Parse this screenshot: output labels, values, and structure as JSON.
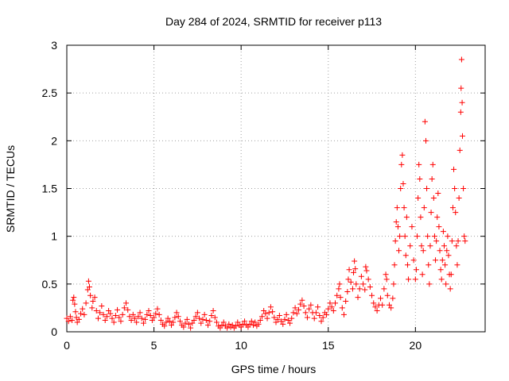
{
  "chart_data": {
    "type": "scatter",
    "title": "Day 284 of 2024, SRMTID for receiver p113",
    "xlabel": "GPS time / hours",
    "ylabel": "SRMTID / TECUs",
    "xlim": [
      0,
      24
    ],
    "ylim": [
      0,
      3
    ],
    "xticks": [
      0,
      5,
      10,
      15,
      20
    ],
    "yticks": [
      0,
      0.5,
      1,
      1.5,
      2,
      2.5,
      3
    ],
    "xtick_labels": [
      "0",
      "5",
      "10",
      "15",
      "20"
    ],
    "ytick_labels": [
      "0",
      "0.5",
      "1",
      "1.5",
      "2",
      "2.5",
      "3"
    ],
    "grid": true,
    "marker": "+",
    "series": [
      {
        "name": "SRMTID",
        "color": "#ff0000",
        "points": [
          [
            0.0,
            0.14
          ],
          [
            0.1,
            0.11
          ],
          [
            0.2,
            0.16
          ],
          [
            0.3,
            0.12
          ],
          [
            0.35,
            0.33
          ],
          [
            0.4,
            0.36
          ],
          [
            0.45,
            0.29
          ],
          [
            0.5,
            0.21
          ],
          [
            0.55,
            0.15
          ],
          [
            0.6,
            0.1
          ],
          [
            0.7,
            0.13
          ],
          [
            0.8,
            0.19
          ],
          [
            0.9,
            0.24
          ],
          [
            1.0,
            0.18
          ],
          [
            1.1,
            0.3
          ],
          [
            1.2,
            0.44
          ],
          [
            1.25,
            0.53
          ],
          [
            1.3,
            0.47
          ],
          [
            1.35,
            0.38
          ],
          [
            1.45,
            0.25
          ],
          [
            1.5,
            0.32
          ],
          [
            1.6,
            0.36
          ],
          [
            1.7,
            0.22
          ],
          [
            1.8,
            0.14
          ],
          [
            1.9,
            0.2
          ],
          [
            2.0,
            0.27
          ],
          [
            2.1,
            0.18
          ],
          [
            2.2,
            0.12
          ],
          [
            2.3,
            0.16
          ],
          [
            2.4,
            0.22
          ],
          [
            2.5,
            0.19
          ],
          [
            2.6,
            0.14
          ],
          [
            2.7,
            0.1
          ],
          [
            2.8,
            0.17
          ],
          [
            2.9,
            0.23
          ],
          [
            3.0,
            0.15
          ],
          [
            3.1,
            0.11
          ],
          [
            3.2,
            0.18
          ],
          [
            3.3,
            0.25
          ],
          [
            3.4,
            0.3
          ],
          [
            3.5,
            0.23
          ],
          [
            3.6,
            0.16
          ],
          [
            3.7,
            0.12
          ],
          [
            3.8,
            0.18
          ],
          [
            3.9,
            0.14
          ],
          [
            4.0,
            0.1
          ],
          [
            4.1,
            0.16
          ],
          [
            4.2,
            0.2
          ],
          [
            4.3,
            0.14
          ],
          [
            4.4,
            0.09
          ],
          [
            4.5,
            0.13
          ],
          [
            4.6,
            0.18
          ],
          [
            4.7,
            0.22
          ],
          [
            4.8,
            0.17
          ],
          [
            4.9,
            0.12
          ],
          [
            5.0,
            0.15
          ],
          [
            5.1,
            0.19
          ],
          [
            5.2,
            0.24
          ],
          [
            5.3,
            0.18
          ],
          [
            5.4,
            0.12
          ],
          [
            5.5,
            0.08
          ],
          [
            5.6,
            0.06
          ],
          [
            5.7,
            0.1
          ],
          [
            5.8,
            0.14
          ],
          [
            5.9,
            0.11
          ],
          [
            6.0,
            0.07
          ],
          [
            6.1,
            0.1
          ],
          [
            6.2,
            0.15
          ],
          [
            6.3,
            0.2
          ],
          [
            6.4,
            0.16
          ],
          [
            6.5,
            0.11
          ],
          [
            6.6,
            0.07
          ],
          [
            6.7,
            0.05
          ],
          [
            6.8,
            0.09
          ],
          [
            6.9,
            0.13
          ],
          [
            7.0,
            0.08
          ],
          [
            7.1,
            0.04
          ],
          [
            7.2,
            0.09
          ],
          [
            7.3,
            0.12
          ],
          [
            7.4,
            0.16
          ],
          [
            7.5,
            0.2
          ],
          [
            7.6,
            0.14
          ],
          [
            7.7,
            0.09
          ],
          [
            7.8,
            0.13
          ],
          [
            7.9,
            0.18
          ],
          [
            8.0,
            0.12
          ],
          [
            8.1,
            0.07
          ],
          [
            8.2,
            0.11
          ],
          [
            8.3,
            0.17
          ],
          [
            8.4,
            0.22
          ],
          [
            8.5,
            0.15
          ],
          [
            8.6,
            0.1
          ],
          [
            8.7,
            0.06
          ],
          [
            8.8,
            0.04
          ],
          [
            8.9,
            0.07
          ],
          [
            9.0,
            0.1
          ],
          [
            9.1,
            0.06
          ],
          [
            9.2,
            0.04
          ],
          [
            9.3,
            0.08
          ],
          [
            9.4,
            0.05
          ],
          [
            9.5,
            0.07
          ],
          [
            9.6,
            0.04
          ],
          [
            9.7,
            0.06
          ],
          [
            9.8,
            0.1
          ],
          [
            9.9,
            0.07
          ],
          [
            10.0,
            0.05
          ],
          [
            10.1,
            0.08
          ],
          [
            10.2,
            0.11
          ],
          [
            10.3,
            0.07
          ],
          [
            10.4,
            0.05
          ],
          [
            10.5,
            0.08
          ],
          [
            10.6,
            0.11
          ],
          [
            10.7,
            0.07
          ],
          [
            10.8,
            0.1
          ],
          [
            10.9,
            0.06
          ],
          [
            11.0,
            0.08
          ],
          [
            11.1,
            0.12
          ],
          [
            11.2,
            0.16
          ],
          [
            11.3,
            0.22
          ],
          [
            11.4,
            0.19
          ],
          [
            11.5,
            0.14
          ],
          [
            11.6,
            0.2
          ],
          [
            11.7,
            0.26
          ],
          [
            11.8,
            0.21
          ],
          [
            11.9,
            0.15
          ],
          [
            12.0,
            0.1
          ],
          [
            12.1,
            0.13
          ],
          [
            12.2,
            0.17
          ],
          [
            12.3,
            0.11
          ],
          [
            12.4,
            0.08
          ],
          [
            12.5,
            0.13
          ],
          [
            12.6,
            0.18
          ],
          [
            12.7,
            0.12
          ],
          [
            12.8,
            0.09
          ],
          [
            12.9,
            0.14
          ],
          [
            13.0,
            0.2
          ],
          [
            13.1,
            0.25
          ],
          [
            13.2,
            0.19
          ],
          [
            13.3,
            0.23
          ],
          [
            13.4,
            0.29
          ],
          [
            13.5,
            0.33
          ],
          [
            13.6,
            0.27
          ],
          [
            13.7,
            0.2
          ],
          [
            13.8,
            0.15
          ],
          [
            13.9,
            0.24
          ],
          [
            14.0,
            0.28
          ],
          [
            14.1,
            0.2
          ],
          [
            14.2,
            0.14
          ],
          [
            14.3,
            0.2
          ],
          [
            14.4,
            0.26
          ],
          [
            14.5,
            0.17
          ],
          [
            14.6,
            0.11
          ],
          [
            14.7,
            0.15
          ],
          [
            14.8,
            0.2
          ],
          [
            14.9,
            0.18
          ],
          [
            15.0,
            0.24
          ],
          [
            15.1,
            0.3
          ],
          [
            15.2,
            0.26
          ],
          [
            15.3,
            0.22
          ],
          [
            15.4,
            0.3
          ],
          [
            15.5,
            0.38
          ],
          [
            15.6,
            0.45
          ],
          [
            15.65,
            0.5
          ],
          [
            15.7,
            0.36
          ],
          [
            15.8,
            0.25
          ],
          [
            15.9,
            0.18
          ],
          [
            16.0,
            0.32
          ],
          [
            16.1,
            0.42
          ],
          [
            16.15,
            0.55
          ],
          [
            16.2,
            0.65
          ],
          [
            16.3,
            0.52
          ],
          [
            16.4,
            0.45
          ],
          [
            16.45,
            0.62
          ],
          [
            16.5,
            0.74
          ],
          [
            16.55,
            0.66
          ],
          [
            16.6,
            0.5
          ],
          [
            16.7,
            0.36
          ],
          [
            16.8,
            0.45
          ],
          [
            16.9,
            0.58
          ],
          [
            17.0,
            0.5
          ],
          [
            17.1,
            0.44
          ],
          [
            17.15,
            0.68
          ],
          [
            17.2,
            0.64
          ],
          [
            17.3,
            0.55
          ],
          [
            17.4,
            0.47
          ],
          [
            17.5,
            0.38
          ],
          [
            17.6,
            0.3
          ],
          [
            17.7,
            0.26
          ],
          [
            17.8,
            0.22
          ],
          [
            17.9,
            0.28
          ],
          [
            18.0,
            0.35
          ],
          [
            18.1,
            0.28
          ],
          [
            18.2,
            0.45
          ],
          [
            18.3,
            0.6
          ],
          [
            18.35,
            0.55
          ],
          [
            18.4,
            0.38
          ],
          [
            18.5,
            0.28
          ],
          [
            18.6,
            0.25
          ],
          [
            18.7,
            0.35
          ],
          [
            18.75,
            0.5
          ],
          [
            18.8,
            0.7
          ],
          [
            18.85,
            0.95
          ],
          [
            18.9,
            1.15
          ],
          [
            18.95,
            1.3
          ],
          [
            19.0,
            1.1
          ],
          [
            19.05,
            0.85
          ],
          [
            19.1,
            1.0
          ],
          [
            19.15,
            1.5
          ],
          [
            19.2,
            1.75
          ],
          [
            19.25,
            1.85
          ],
          [
            19.3,
            1.55
          ],
          [
            19.35,
            1.3
          ],
          [
            19.4,
            1.0
          ],
          [
            19.45,
            0.8
          ],
          [
            19.5,
            1.2
          ],
          [
            19.55,
            0.7
          ],
          [
            19.6,
            0.55
          ],
          [
            19.7,
            0.9
          ],
          [
            19.8,
            1.1
          ],
          [
            19.9,
            0.75
          ],
          [
            20.0,
            0.55
          ],
          [
            20.05,
            0.65
          ],
          [
            20.1,
            1.0
          ],
          [
            20.15,
            1.4
          ],
          [
            20.2,
            1.75
          ],
          [
            20.25,
            1.6
          ],
          [
            20.3,
            1.2
          ],
          [
            20.35,
            0.9
          ],
          [
            20.4,
            0.6
          ],
          [
            20.45,
            0.85
          ],
          [
            20.5,
            1.3
          ],
          [
            20.55,
            2.2
          ],
          [
            20.6,
            2.0
          ],
          [
            20.65,
            1.5
          ],
          [
            20.7,
            1.0
          ],
          [
            20.75,
            0.7
          ],
          [
            20.8,
            0.5
          ],
          [
            20.85,
            0.9
          ],
          [
            20.9,
            1.25
          ],
          [
            20.95,
            1.6
          ],
          [
            21.0,
            1.75
          ],
          [
            21.05,
            1.4
          ],
          [
            21.1,
            1.0
          ],
          [
            21.15,
            0.75
          ],
          [
            21.2,
            0.95
          ],
          [
            21.25,
            1.2
          ],
          [
            21.3,
            1.45
          ],
          [
            21.35,
            1.1
          ],
          [
            21.4,
            0.85
          ],
          [
            21.45,
            0.65
          ],
          [
            21.5,
            0.55
          ],
          [
            21.55,
            0.75
          ],
          [
            21.6,
            1.05
          ],
          [
            21.65,
            0.9
          ],
          [
            21.7,
            0.7
          ],
          [
            21.75,
            0.5
          ],
          [
            21.8,
            0.85
          ],
          [
            21.85,
            1.0
          ],
          [
            21.9,
            0.8
          ],
          [
            21.95,
            0.6
          ],
          [
            22.0,
            0.45
          ],
          [
            22.05,
            0.6
          ],
          [
            22.1,
            0.95
          ],
          [
            22.15,
            1.3
          ],
          [
            22.2,
            1.7
          ],
          [
            22.25,
            1.5
          ],
          [
            22.3,
            1.25
          ],
          [
            22.35,
            0.9
          ],
          [
            22.4,
            0.7
          ],
          [
            22.45,
            0.95
          ],
          [
            22.5,
            1.4
          ],
          [
            22.55,
            1.9
          ],
          [
            22.6,
            2.3
          ],
          [
            22.62,
            2.55
          ],
          [
            22.65,
            2.85
          ],
          [
            22.68,
            2.4
          ],
          [
            22.7,
            2.05
          ],
          [
            22.75,
            1.5
          ],
          [
            22.8,
            1.0
          ],
          [
            22.85,
            0.95
          ]
        ]
      }
    ]
  }
}
